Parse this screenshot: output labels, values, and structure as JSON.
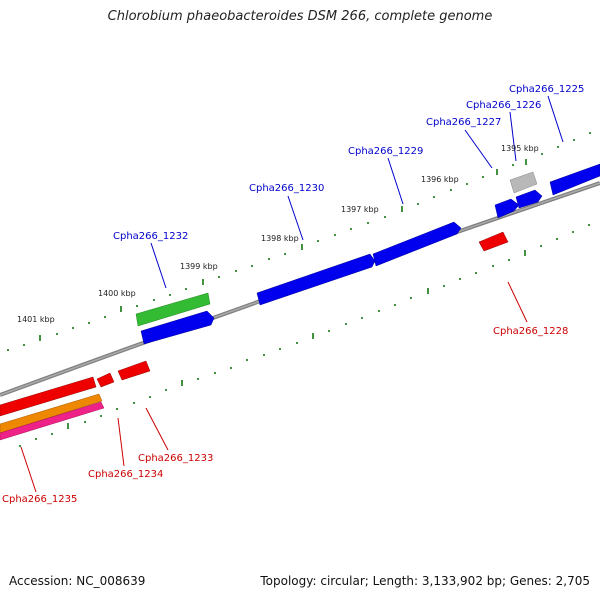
{
  "title": "Chlorobium phaeobacteroides DSM 266, complete genome",
  "footer": {
    "accession": "Accession: NC_008639",
    "topology": "Topology: circular; Length: 3,133,902 bp; Genes: 2,705"
  },
  "scale_labels": [
    "1395 kbp",
    "1396 kbp",
    "1397 kbp",
    "1398 kbp",
    "1399 kbp",
    "1400 kbp",
    "1401 kbp"
  ],
  "genes": [
    {
      "name": "Cpha266_1225",
      "strand": "forward",
      "color": "#0000dd"
    },
    {
      "name": "Cpha266_1226",
      "strand": "forward",
      "color": "#0000dd"
    },
    {
      "name": "Cpha266_1227",
      "strand": "forward",
      "color": "#0000dd"
    },
    {
      "name": "Cpha266_1228",
      "strand": "reverse",
      "color": "#dd0000"
    },
    {
      "name": "Cpha266_1229",
      "strand": "forward",
      "color": "#0000dd"
    },
    {
      "name": "Cpha266_1230",
      "strand": "forward",
      "color": "#0000dd"
    },
    {
      "name": "Cpha266_1232",
      "strand": "forward",
      "color": "#0000dd"
    },
    {
      "name": "Cpha266_1233",
      "strand": "reverse",
      "color": "#dd0000"
    },
    {
      "name": "Cpha266_1234",
      "strand": "reverse",
      "color": "#dd0000"
    },
    {
      "name": "Cpha266_1235",
      "strand": "reverse",
      "color": "#dd0000"
    }
  ],
  "feature_colors": {
    "cds_forward": "#0000ee",
    "cds_reverse": "#ee0000",
    "gene_green": "#33bb33",
    "pseudo_gray": "#b8b8b8",
    "rrna_orange": "#ee8800",
    "trna_pink": "#ee2288",
    "backbone": "#888888",
    "tick": "#117711"
  }
}
